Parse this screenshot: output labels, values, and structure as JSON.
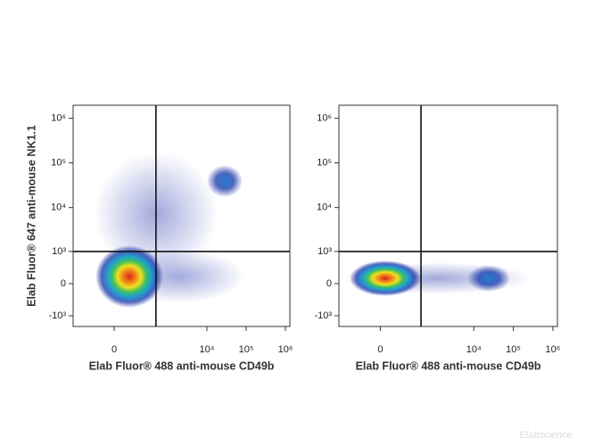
{
  "chart_data": [
    {
      "type": "scatter",
      "xlabel": "Elab Fluor® 488 anti-mouse CD49b",
      "ylabel": "Elab Fluor® 647 anti-mouse NK1.1",
      "xscale": "biexponential",
      "yscale": "biexponential",
      "xlim": [
        -480,
        1300000
      ],
      "ylim": [
        -1780,
        1960000
      ],
      "xticks": [
        0,
        {
          "value": 10000,
          "label": "10⁴"
        },
        {
          "value": 100000,
          "label": "10⁵"
        },
        {
          "value": 1000000,
          "label": "10⁶"
        }
      ],
      "yticks": [
        {
          "value": -1000,
          "label": "-10³"
        },
        0,
        {
          "value": 1000,
          "label": "10³"
        },
        {
          "value": 10000,
          "label": "10⁴"
        },
        {
          "value": 100000,
          "label": "10⁵"
        },
        {
          "value": 1000000,
          "label": "10⁶"
        }
      ],
      "gates": {
        "x": 500,
        "y": 1000
      }
    },
    {
      "type": "scatter",
      "xlabel": "Elab Fluor® 488 anti-mouse CD49b",
      "xscale": "biexponential",
      "yscale": "biexponential",
      "xlim": [
        -480,
        1300000
      ],
      "ylim": [
        -1780,
        1960000
      ],
      "xticks": [
        0,
        {
          "value": 10000,
          "label": "10⁴"
        },
        {
          "value": 100000,
          "label": "10⁵"
        },
        {
          "value": 1000000,
          "label": "10⁶"
        }
      ],
      "yticks": [
        {
          "value": -1000,
          "label": "-10³"
        },
        0,
        {
          "value": 1000,
          "label": "10³"
        },
        {
          "value": 10000,
          "label": "10⁴"
        },
        {
          "value": 100000,
          "label": "10⁵"
        },
        {
          "value": 1000000,
          "label": "10⁶"
        }
      ],
      "gates": {
        "x": 460,
        "y": 1000
      }
    }
  ],
  "watermark": "Elabscience"
}
